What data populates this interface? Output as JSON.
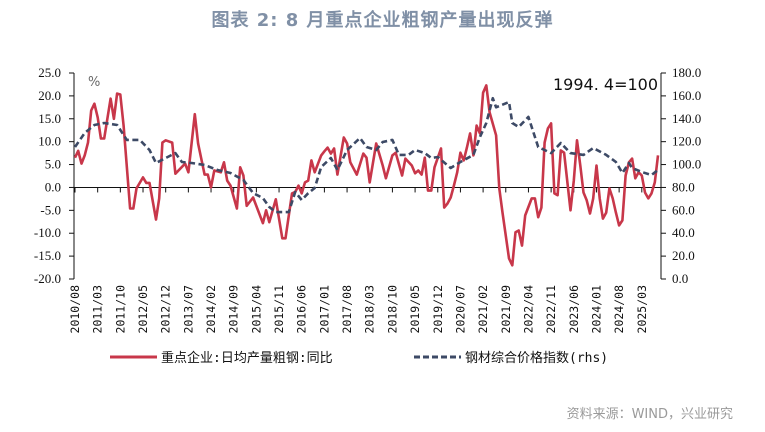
{
  "title": "图表 2:  8 月重点企业粗钢产量出现反弹",
  "source": "资料来源：WIND，兴业研究",
  "colors": {
    "series1": "#c8374a",
    "series2": "#3d4a66",
    "title": "#8090a6"
  },
  "chart_data": {
    "type": "line",
    "left_unit": "%",
    "right_annotation": "1994. 4=100",
    "ylim_left": [
      -20,
      25
    ],
    "ylim_right": [
      0,
      180
    ],
    "yticks_left": [
      "25.0",
      "20.0",
      "15.0",
      "10.0",
      "5.0",
      "0.0",
      "-5.0",
      "-10.0",
      "-15.0",
      "-20.0"
    ],
    "yticks_right": [
      "180.0",
      "160.0",
      "140.0",
      "120.0",
      "100.0",
      "80.0",
      "60.0",
      "40.0",
      "20.0",
      "0.0"
    ],
    "xlim": [
      "2010-08",
      "2025-08"
    ],
    "xticks": [
      "2010/08",
      "2011/03",
      "2011/10",
      "2012/05",
      "2012/12",
      "2013/07",
      "2014/02",
      "2014/09",
      "2015/04",
      "2015/11",
      "2016/06",
      "2017/01",
      "2017/08",
      "2018/03",
      "2018/10",
      "2019/05",
      "2019/12",
      "2020/07",
      "2021/02",
      "2021/09",
      "2022/04",
      "2022/11",
      "2023/06",
      "2024/01",
      "2024/08",
      "2025/03"
    ],
    "grid": false,
    "legend_placement": "bottom",
    "series": [
      {
        "name": "重点企业:日均产量粗钢:同比",
        "axis": "left",
        "style": "solid",
        "points": [
          [
            "2010-08",
            6.5
          ],
          [
            "2010-09",
            8.0
          ],
          [
            "2010-10",
            5.2
          ],
          [
            "2010-11",
            7.0
          ],
          [
            "2010-12",
            9.8
          ],
          [
            "2011-01",
            16.8
          ],
          [
            "2011-02",
            18.3
          ],
          [
            "2011-03",
            15.3
          ],
          [
            "2011-04",
            10.7
          ],
          [
            "2011-05",
            10.7
          ],
          [
            "2011-07",
            19.4
          ],
          [
            "2011-08",
            15.0
          ],
          [
            "2011-09",
            20.5
          ],
          [
            "2011-10",
            20.3
          ],
          [
            "2011-11",
            13.5
          ],
          [
            "2012-01",
            -4.6
          ],
          [
            "2012-02",
            -4.6
          ],
          [
            "2012-03",
            -0.2
          ],
          [
            "2012-05",
            2.2
          ],
          [
            "2012-06",
            1.0
          ],
          [
            "2012-07",
            1.0
          ],
          [
            "2012-09",
            -7.0
          ],
          [
            "2012-10",
            -2.4
          ],
          [
            "2012-11",
            9.8
          ],
          [
            "2012-12",
            10.3
          ],
          [
            "2013-02",
            9.8
          ],
          [
            "2013-03",
            3.0
          ],
          [
            "2013-06",
            5.2
          ],
          [
            "2013-07",
            3.3
          ],
          [
            "2013-09",
            16.0
          ],
          [
            "2013-10",
            9.6
          ],
          [
            "2013-12",
            2.8
          ],
          [
            "2014-01",
            2.8
          ],
          [
            "2014-02",
            0.0
          ],
          [
            "2014-03",
            3.7
          ],
          [
            "2014-05",
            3.3
          ],
          [
            "2014-06",
            5.5
          ],
          [
            "2014-07",
            1.5
          ],
          [
            "2014-08",
            0.4
          ],
          [
            "2014-10",
            -4.6
          ],
          [
            "2014-11",
            4.4
          ],
          [
            "2014-12",
            2.6
          ],
          [
            "2015-01",
            -4.0
          ],
          [
            "2015-03",
            -2.2
          ],
          [
            "2015-06",
            -7.8
          ],
          [
            "2015-07",
            -5.0
          ],
          [
            "2015-08",
            -7.6
          ],
          [
            "2015-10",
            -2.6
          ],
          [
            "2015-12",
            -11.1
          ],
          [
            "2016-01",
            -11.1
          ],
          [
            "2016-03",
            -1.3
          ],
          [
            "2016-04",
            -1.0
          ],
          [
            "2016-05",
            0.4
          ],
          [
            "2016-06",
            -1.3
          ],
          [
            "2016-07",
            1.1
          ],
          [
            "2016-08",
            1.5
          ],
          [
            "2016-09",
            5.9
          ],
          [
            "2016-10",
            3.3
          ],
          [
            "2016-12",
            7.0
          ],
          [
            "2017-01",
            7.9
          ],
          [
            "2017-02",
            8.7
          ],
          [
            "2017-03",
            7.4
          ],
          [
            "2017-04",
            8.5
          ],
          [
            "2017-05",
            2.8
          ],
          [
            "2017-07",
            10.9
          ],
          [
            "2017-08",
            9.6
          ],
          [
            "2017-09",
            5.5
          ],
          [
            "2017-11",
            2.8
          ],
          [
            "2018-01",
            7.4
          ],
          [
            "2018-02",
            6.5
          ],
          [
            "2018-03",
            1.1
          ],
          [
            "2018-05",
            9.6
          ],
          [
            "2018-07",
            4.8
          ],
          [
            "2018-08",
            2.0
          ],
          [
            "2018-10",
            7.0
          ],
          [
            "2018-11",
            7.6
          ],
          [
            "2019-01",
            2.6
          ],
          [
            "2019-02",
            6.3
          ],
          [
            "2019-04",
            4.8
          ],
          [
            "2019-05",
            3.1
          ],
          [
            "2019-06",
            3.7
          ],
          [
            "2019-07",
            2.8
          ],
          [
            "2019-08",
            6.5
          ],
          [
            "2019-09",
            -0.7
          ],
          [
            "2019-10",
            -0.7
          ],
          [
            "2019-11",
            4.4
          ],
          [
            "2020-01",
            8.5
          ],
          [
            "2020-02",
            -4.4
          ],
          [
            "2020-03",
            -3.5
          ],
          [
            "2020-04",
            -2.2
          ],
          [
            "2020-05",
            0.4
          ],
          [
            "2020-06",
            3.3
          ],
          [
            "2020-07",
            7.6
          ],
          [
            "2020-08",
            5.9
          ],
          [
            "2020-09",
            8.7
          ],
          [
            "2020-10",
            11.8
          ],
          [
            "2020-11",
            7.0
          ],
          [
            "2020-12",
            13.5
          ],
          [
            "2021-01",
            11.8
          ],
          [
            "2021-02",
            20.7
          ],
          [
            "2021-03",
            22.3
          ],
          [
            "2021-04",
            16.4
          ],
          [
            "2021-06",
            11.4
          ],
          [
            "2021-07",
            -0.2
          ],
          [
            "2021-08",
            -5.5
          ],
          [
            "2021-10",
            -15.5
          ],
          [
            "2021-11",
            -17.0
          ],
          [
            "2021-12",
            -9.8
          ],
          [
            "2022-01",
            -9.4
          ],
          [
            "2022-02",
            -12.7
          ],
          [
            "2022-03",
            -6.1
          ],
          [
            "2022-05",
            -2.4
          ],
          [
            "2022-06",
            -2.4
          ],
          [
            "2022-07",
            -6.5
          ],
          [
            "2022-08",
            -4.4
          ],
          [
            "2022-09",
            9.8
          ],
          [
            "2022-10",
            12.9
          ],
          [
            "2022-11",
            14.0
          ],
          [
            "2022-12",
            -1.3
          ],
          [
            "2023-01",
            -1.7
          ],
          [
            "2023-02",
            8.1
          ],
          [
            "2023-03",
            7.6
          ],
          [
            "2023-05",
            -5.0
          ],
          [
            "2023-06",
            1.5
          ],
          [
            "2023-07",
            10.3
          ],
          [
            "2023-08",
            4.8
          ],
          [
            "2023-09",
            -1.1
          ],
          [
            "2023-10",
            -2.8
          ],
          [
            "2023-11",
            -5.7
          ],
          [
            "2023-12",
            -2.4
          ],
          [
            "2024-01",
            4.8
          ],
          [
            "2024-02",
            -2.4
          ],
          [
            "2024-03",
            -6.8
          ],
          [
            "2024-04",
            -5.5
          ],
          [
            "2024-05",
            -0.2
          ],
          [
            "2024-06",
            -2.4
          ],
          [
            "2024-07",
            -5.5
          ],
          [
            "2024-08",
            -8.3
          ],
          [
            "2024-09",
            -7.2
          ],
          [
            "2024-10",
            2.6
          ],
          [
            "2024-11",
            5.5
          ],
          [
            "2024-12",
            6.3
          ],
          [
            "2025-01",
            2.0
          ],
          [
            "2025-02",
            3.3
          ],
          [
            "2025-03",
            2.6
          ],
          [
            "2025-04",
            -1.1
          ],
          [
            "2025-05",
            -2.4
          ],
          [
            "2025-06",
            -1.3
          ],
          [
            "2025-07",
            1.1
          ],
          [
            "2025-08",
            7.0
          ]
        ]
      },
      {
        "name": "钢材综合价格指数(rhs)",
        "axis": "right",
        "style": "dashed",
        "points": [
          [
            "2010-08",
            115.3
          ],
          [
            "2010-11",
            127.6
          ],
          [
            "2011-02",
            134.6
          ],
          [
            "2011-05",
            136.3
          ],
          [
            "2011-09",
            134.6
          ],
          [
            "2011-12",
            121.5
          ],
          [
            "2012-04",
            121.5
          ],
          [
            "2012-07",
            112.7
          ],
          [
            "2012-09",
            101.4
          ],
          [
            "2012-12",
            105.7
          ],
          [
            "2013-03",
            110.0
          ],
          [
            "2013-05",
            102.2
          ],
          [
            "2013-08",
            101.4
          ],
          [
            "2013-12",
            99.6
          ],
          [
            "2014-04",
            95.2
          ],
          [
            "2014-08",
            92.6
          ],
          [
            "2014-12",
            86.5
          ],
          [
            "2015-03",
            75.1
          ],
          [
            "2015-06",
            70.8
          ],
          [
            "2015-08",
            62.9
          ],
          [
            "2015-10",
            58.5
          ],
          [
            "2016-02",
            58.5
          ],
          [
            "2016-04",
            76.0
          ],
          [
            "2016-06",
            69.0
          ],
          [
            "2016-08",
            75.0
          ],
          [
            "2016-10",
            79.5
          ],
          [
            "2016-12",
            97.9
          ],
          [
            "2017-03",
            105.7
          ],
          [
            "2017-05",
            95.2
          ],
          [
            "2017-08",
            112.7
          ],
          [
            "2017-12",
            123.2
          ],
          [
            "2018-02",
            115.3
          ],
          [
            "2018-05",
            112.7
          ],
          [
            "2018-07",
            119.7
          ],
          [
            "2018-10",
            121.5
          ],
          [
            "2018-12",
            108.4
          ],
          [
            "2019-03",
            108.4
          ],
          [
            "2019-05",
            112.7
          ],
          [
            "2019-08",
            110.0
          ],
          [
            "2019-10",
            105.7
          ],
          [
            "2019-12",
            106.6
          ],
          [
            "2020-04",
            97.0
          ],
          [
            "2020-07",
            102.2
          ],
          [
            "2020-11",
            108.4
          ],
          [
            "2021-01",
            124.0
          ],
          [
            "2021-03",
            136.3
          ],
          [
            "2021-05",
            158.0
          ],
          [
            "2021-06",
            150.0
          ],
          [
            "2021-10",
            154.7
          ],
          [
            "2021-11",
            136.3
          ],
          [
            "2022-01",
            132.8
          ],
          [
            "2022-04",
            141.6
          ],
          [
            "2022-07",
            115.3
          ],
          [
            "2022-11",
            110.0
          ],
          [
            "2023-02",
            118.8
          ],
          [
            "2023-05",
            110.0
          ],
          [
            "2023-09",
            108.4
          ],
          [
            "2023-12",
            114.5
          ],
          [
            "2024-04",
            108.4
          ],
          [
            "2024-07",
            102.2
          ],
          [
            "2024-09",
            92.6
          ],
          [
            "2024-11",
            101.4
          ],
          [
            "2024-12",
            97.0
          ],
          [
            "2025-03",
            93.5
          ],
          [
            "2025-06",
            90.9
          ],
          [
            "2025-08",
            95.2
          ]
        ]
      }
    ]
  }
}
